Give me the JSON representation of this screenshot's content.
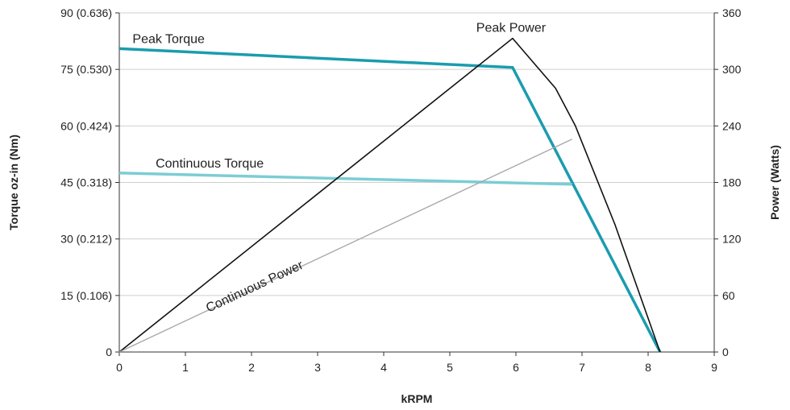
{
  "chart_data": {
    "type": "line",
    "xlabel": "kRPM",
    "ylabel_left": "Torque oz-in (Nm)",
    "ylabel_right": "Power (Watts)",
    "xlim": [
      0,
      9
    ],
    "ylim_left": [
      0,
      90
    ],
    "ylim_right": [
      0,
      360
    ],
    "grid": true,
    "x_ticks": [
      "0",
      "1",
      "2",
      "3",
      "4",
      "5",
      "6",
      "7",
      "8",
      "9"
    ],
    "y_left_ticks": [
      "0",
      "15 (0.106)",
      "30 (0.212)",
      "45 (0.318)",
      "60 (0.424)",
      "75 (0.530)",
      "90 (0.636)"
    ],
    "y_right_ticks": [
      "0",
      "60",
      "120",
      "180",
      "240",
      "300",
      "360"
    ],
    "series": [
      {
        "name": "Peak Torque",
        "axis": "left",
        "color": "#1a9cae",
        "points": [
          [
            0,
            80.5
          ],
          [
            5.95,
            75.5
          ],
          [
            8.18,
            0
          ]
        ]
      },
      {
        "name": "Continuous  Torque",
        "axis": "left",
        "color": "#7ccdd4",
        "points": [
          [
            0,
            47.5
          ],
          [
            6.85,
            44.5
          ]
        ]
      },
      {
        "name": "Peak Power",
        "axis": "right",
        "color": "#111111",
        "points": [
          [
            0,
            0
          ],
          [
            5.95,
            333
          ],
          [
            6.6,
            280
          ],
          [
            6.9,
            240
          ],
          [
            7.5,
            135
          ],
          [
            8.18,
            0
          ]
        ]
      },
      {
        "name": "Continuous Power",
        "axis": "right",
        "color": "#a8a8a8",
        "points": [
          [
            0,
            0
          ],
          [
            6.85,
            226
          ]
        ]
      }
    ],
    "annotations": [
      {
        "text": "Peak Torque",
        "x": 0.2,
        "y_left": 82,
        "rotate_deg": 0
      },
      {
        "text": "Peak Power",
        "x": 5.4,
        "y_right": 340,
        "rotate_deg": 0
      },
      {
        "text": "Continuous  Torque",
        "x": 0.55,
        "y_left": 49,
        "rotate_deg": 0
      },
      {
        "text": "Continuous Power",
        "x": 1.35,
        "y_right": 42,
        "rotate_deg": -25
      }
    ]
  }
}
